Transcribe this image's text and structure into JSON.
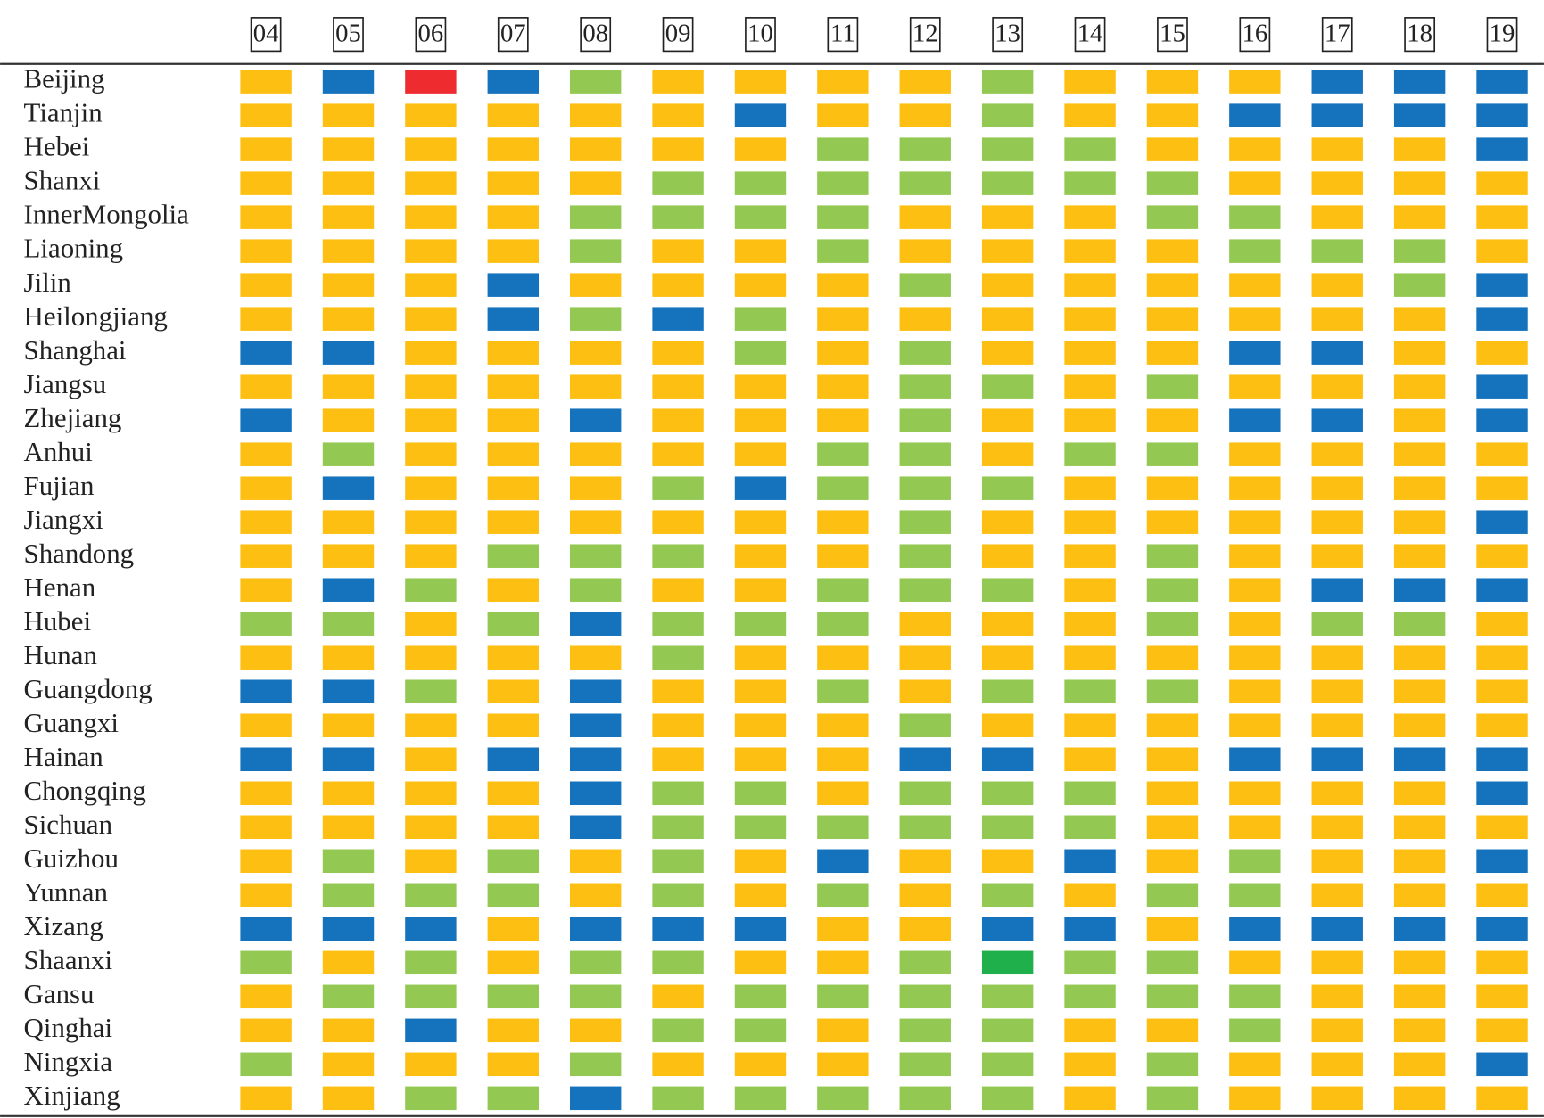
{
  "table": {
    "columns": [
      "04",
      "05",
      "06",
      "07",
      "08",
      "09",
      "10",
      "11",
      "12",
      "13",
      "14",
      "15",
      "16",
      "17",
      "18",
      "19"
    ],
    "rows": [
      {
        "label": "Beijing",
        "cells": [
          "#fcbf12",
          "#1572bd",
          "#ee2b2e",
          "#1572bd",
          "#93c852",
          "#fcbf12",
          "#fcbf12",
          "#fcbf12",
          "#fcbf12",
          "#93c852",
          "#fcbf12",
          "#fcbf12",
          "#fcbf12",
          "#1572bd",
          "#1572bd",
          "#1572bd"
        ]
      },
      {
        "label": "Tianjin",
        "cells": [
          "#fcbf12",
          "#fcbf12",
          "#fcbf12",
          "#fcbf12",
          "#fcbf12",
          "#fcbf12",
          "#1572bd",
          "#fcbf12",
          "#fcbf12",
          "#93c852",
          "#fcbf12",
          "#fcbf12",
          "#1572bd",
          "#1572bd",
          "#1572bd",
          "#1572bd"
        ]
      },
      {
        "label": "Hebei",
        "cells": [
          "#fcbf12",
          "#fcbf12",
          "#fcbf12",
          "#fcbf12",
          "#fcbf12",
          "#fcbf12",
          "#fcbf12",
          "#93c852",
          "#93c852",
          "#93c852",
          "#93c852",
          "#fcbf12",
          "#fcbf12",
          "#fcbf12",
          "#fcbf12",
          "#1572bd"
        ]
      },
      {
        "label": "Shanxi",
        "cells": [
          "#fcbf12",
          "#fcbf12",
          "#fcbf12",
          "#fcbf12",
          "#fcbf12",
          "#93c852",
          "#93c852",
          "#93c852",
          "#93c852",
          "#93c852",
          "#93c852",
          "#93c852",
          "#fcbf12",
          "#fcbf12",
          "#fcbf12",
          "#fcbf12"
        ]
      },
      {
        "label": "InnerMongolia",
        "cells": [
          "#fcbf12",
          "#fcbf12",
          "#fcbf12",
          "#fcbf12",
          "#93c852",
          "#93c852",
          "#93c852",
          "#93c852",
          "#fcbf12",
          "#fcbf12",
          "#fcbf12",
          "#93c852",
          "#93c852",
          "#fcbf12",
          "#fcbf12",
          "#fcbf12"
        ]
      },
      {
        "label": "Liaoning",
        "cells": [
          "#fcbf12",
          "#fcbf12",
          "#fcbf12",
          "#fcbf12",
          "#93c852",
          "#fcbf12",
          "#fcbf12",
          "#93c852",
          "#fcbf12",
          "#fcbf12",
          "#fcbf12",
          "#fcbf12",
          "#93c852",
          "#93c852",
          "#93c852",
          "#fcbf12"
        ]
      },
      {
        "label": "Jilin",
        "cells": [
          "#fcbf12",
          "#fcbf12",
          "#fcbf12",
          "#1572bd",
          "#fcbf12",
          "#fcbf12",
          "#fcbf12",
          "#fcbf12",
          "#93c852",
          "#fcbf12",
          "#fcbf12",
          "#fcbf12",
          "#fcbf12",
          "#fcbf12",
          "#93c852",
          "#1572bd"
        ]
      },
      {
        "label": "Heilongjiang",
        "cells": [
          "#fcbf12",
          "#fcbf12",
          "#fcbf12",
          "#1572bd",
          "#93c852",
          "#1572bd",
          "#93c852",
          "#fcbf12",
          "#fcbf12",
          "#fcbf12",
          "#fcbf12",
          "#fcbf12",
          "#fcbf12",
          "#fcbf12",
          "#fcbf12",
          "#1572bd"
        ]
      },
      {
        "label": "Shanghai",
        "cells": [
          "#1572bd",
          "#1572bd",
          "#fcbf12",
          "#fcbf12",
          "#fcbf12",
          "#fcbf12",
          "#93c852",
          "#fcbf12",
          "#93c852",
          "#fcbf12",
          "#fcbf12",
          "#fcbf12",
          "#1572bd",
          "#1572bd",
          "#fcbf12",
          "#fcbf12"
        ]
      },
      {
        "label": "Jiangsu",
        "cells": [
          "#fcbf12",
          "#fcbf12",
          "#fcbf12",
          "#fcbf12",
          "#fcbf12",
          "#fcbf12",
          "#fcbf12",
          "#fcbf12",
          "#93c852",
          "#93c852",
          "#fcbf12",
          "#93c852",
          "#fcbf12",
          "#fcbf12",
          "#fcbf12",
          "#1572bd"
        ]
      },
      {
        "label": "Zhejiang",
        "cells": [
          "#1572bd",
          "#fcbf12",
          "#fcbf12",
          "#fcbf12",
          "#1572bd",
          "#fcbf12",
          "#fcbf12",
          "#fcbf12",
          "#93c852",
          "#fcbf12",
          "#fcbf12",
          "#fcbf12",
          "#1572bd",
          "#1572bd",
          "#fcbf12",
          "#1572bd"
        ]
      },
      {
        "label": "Anhui",
        "cells": [
          "#fcbf12",
          "#93c852",
          "#fcbf12",
          "#fcbf12",
          "#fcbf12",
          "#fcbf12",
          "#fcbf12",
          "#93c852",
          "#93c852",
          "#fcbf12",
          "#93c852",
          "#93c852",
          "#fcbf12",
          "#fcbf12",
          "#fcbf12",
          "#fcbf12"
        ]
      },
      {
        "label": "Fujian",
        "cells": [
          "#fcbf12",
          "#1572bd",
          "#fcbf12",
          "#fcbf12",
          "#fcbf12",
          "#93c852",
          "#1572bd",
          "#93c852",
          "#93c852",
          "#93c852",
          "#fcbf12",
          "#fcbf12",
          "#fcbf12",
          "#fcbf12",
          "#fcbf12",
          "#fcbf12"
        ]
      },
      {
        "label": "Jiangxi",
        "cells": [
          "#fcbf12",
          "#fcbf12",
          "#fcbf12",
          "#fcbf12",
          "#fcbf12",
          "#fcbf12",
          "#fcbf12",
          "#fcbf12",
          "#93c852",
          "#fcbf12",
          "#fcbf12",
          "#fcbf12",
          "#fcbf12",
          "#fcbf12",
          "#fcbf12",
          "#1572bd"
        ]
      },
      {
        "label": "Shandong",
        "cells": [
          "#fcbf12",
          "#fcbf12",
          "#fcbf12",
          "#93c852",
          "#93c852",
          "#93c852",
          "#fcbf12",
          "#fcbf12",
          "#93c852",
          "#fcbf12",
          "#fcbf12",
          "#93c852",
          "#fcbf12",
          "#fcbf12",
          "#fcbf12",
          "#fcbf12"
        ]
      },
      {
        "label": "Henan",
        "cells": [
          "#fcbf12",
          "#1572bd",
          "#93c852",
          "#fcbf12",
          "#93c852",
          "#fcbf12",
          "#fcbf12",
          "#93c852",
          "#93c852",
          "#93c852",
          "#fcbf12",
          "#93c852",
          "#fcbf12",
          "#1572bd",
          "#1572bd",
          "#1572bd"
        ]
      },
      {
        "label": "Hubei",
        "cells": [
          "#93c852",
          "#93c852",
          "#fcbf12",
          "#93c852",
          "#1572bd",
          "#93c852",
          "#93c852",
          "#93c852",
          "#fcbf12",
          "#fcbf12",
          "#fcbf12",
          "#93c852",
          "#fcbf12",
          "#93c852",
          "#93c852",
          "#fcbf12"
        ]
      },
      {
        "label": "Hunan",
        "cells": [
          "#fcbf12",
          "#fcbf12",
          "#fcbf12",
          "#fcbf12",
          "#fcbf12",
          "#93c852",
          "#fcbf12",
          "#fcbf12",
          "#fcbf12",
          "#fcbf12",
          "#fcbf12",
          "#fcbf12",
          "#fcbf12",
          "#fcbf12",
          "#fcbf12",
          "#fcbf12"
        ]
      },
      {
        "label": "Guangdong",
        "cells": [
          "#1572bd",
          "#1572bd",
          "#93c852",
          "#fcbf12",
          "#1572bd",
          "#fcbf12",
          "#fcbf12",
          "#93c852",
          "#fcbf12",
          "#93c852",
          "#93c852",
          "#93c852",
          "#fcbf12",
          "#fcbf12",
          "#fcbf12",
          "#fcbf12"
        ]
      },
      {
        "label": "Guangxi",
        "cells": [
          "#fcbf12",
          "#fcbf12",
          "#fcbf12",
          "#fcbf12",
          "#1572bd",
          "#fcbf12",
          "#fcbf12",
          "#fcbf12",
          "#93c852",
          "#fcbf12",
          "#fcbf12",
          "#fcbf12",
          "#fcbf12",
          "#fcbf12",
          "#fcbf12",
          "#fcbf12"
        ]
      },
      {
        "label": "Hainan",
        "cells": [
          "#1572bd",
          "#1572bd",
          "#fcbf12",
          "#1572bd",
          "#1572bd",
          "#fcbf12",
          "#fcbf12",
          "#fcbf12",
          "#1572bd",
          "#1572bd",
          "#fcbf12",
          "#fcbf12",
          "#1572bd",
          "#1572bd",
          "#1572bd",
          "#1572bd"
        ]
      },
      {
        "label": "Chongqing",
        "cells": [
          "#fcbf12",
          "#fcbf12",
          "#fcbf12",
          "#fcbf12",
          "#1572bd",
          "#93c852",
          "#93c852",
          "#fcbf12",
          "#93c852",
          "#93c852",
          "#93c852",
          "#fcbf12",
          "#fcbf12",
          "#fcbf12",
          "#fcbf12",
          "#1572bd"
        ]
      },
      {
        "label": "Sichuan",
        "cells": [
          "#fcbf12",
          "#fcbf12",
          "#fcbf12",
          "#fcbf12",
          "#1572bd",
          "#93c852",
          "#93c852",
          "#93c852",
          "#93c852",
          "#93c852",
          "#93c852",
          "#fcbf12",
          "#fcbf12",
          "#fcbf12",
          "#fcbf12",
          "#fcbf12"
        ]
      },
      {
        "label": "Guizhou",
        "cells": [
          "#fcbf12",
          "#93c852",
          "#fcbf12",
          "#93c852",
          "#fcbf12",
          "#93c852",
          "#fcbf12",
          "#1572bd",
          "#fcbf12",
          "#fcbf12",
          "#1572bd",
          "#fcbf12",
          "#93c852",
          "#fcbf12",
          "#fcbf12",
          "#1572bd"
        ]
      },
      {
        "label": "Yunnan",
        "cells": [
          "#fcbf12",
          "#93c852",
          "#93c852",
          "#93c852",
          "#fcbf12",
          "#93c852",
          "#fcbf12",
          "#93c852",
          "#fcbf12",
          "#93c852",
          "#fcbf12",
          "#93c852",
          "#93c852",
          "#fcbf12",
          "#fcbf12",
          "#fcbf12"
        ]
      },
      {
        "label": "Xizang",
        "cells": [
          "#1572bd",
          "#1572bd",
          "#1572bd",
          "#fcbf12",
          "#1572bd",
          "#1572bd",
          "#1572bd",
          "#fcbf12",
          "#fcbf12",
          "#1572bd",
          "#1572bd",
          "#fcbf12",
          "#1572bd",
          "#1572bd",
          "#1572bd",
          "#1572bd"
        ]
      },
      {
        "label": "Shaanxi",
        "cells": [
          "#93c852",
          "#fcbf12",
          "#93c852",
          "#fcbf12",
          "#93c852",
          "#93c852",
          "#fcbf12",
          "#fcbf12",
          "#93c852",
          "#1fb04b",
          "#93c852",
          "#93c852",
          "#fcbf12",
          "#fcbf12",
          "#fcbf12",
          "#fcbf12"
        ]
      },
      {
        "label": "Gansu",
        "cells": [
          "#fcbf12",
          "#93c852",
          "#93c852",
          "#93c852",
          "#93c852",
          "#fcbf12",
          "#93c852",
          "#93c852",
          "#93c852",
          "#93c852",
          "#93c852",
          "#93c852",
          "#93c852",
          "#fcbf12",
          "#fcbf12",
          "#fcbf12"
        ]
      },
      {
        "label": "Qinghai",
        "cells": [
          "#fcbf12",
          "#fcbf12",
          "#1572bd",
          "#fcbf12",
          "#fcbf12",
          "#93c852",
          "#93c852",
          "#fcbf12",
          "#93c852",
          "#93c852",
          "#fcbf12",
          "#fcbf12",
          "#93c852",
          "#fcbf12",
          "#fcbf12",
          "#fcbf12"
        ]
      },
      {
        "label": "Ningxia",
        "cells": [
          "#93c852",
          "#fcbf12",
          "#fcbf12",
          "#fcbf12",
          "#93c852",
          "#fcbf12",
          "#fcbf12",
          "#fcbf12",
          "#93c852",
          "#93c852",
          "#fcbf12",
          "#93c852",
          "#fcbf12",
          "#fcbf12",
          "#fcbf12",
          "#1572bd"
        ]
      },
      {
        "label": "Xinjiang",
        "cells": [
          "#fcbf12",
          "#fcbf12",
          "#93c852",
          "#93c852",
          "#1572bd",
          "#93c852",
          "#93c852",
          "#93c852",
          "#93c852",
          "#93c852",
          "#fcbf12",
          "#93c852",
          "#fcbf12",
          "#fcbf12",
          "#fcbf12",
          "#fcbf12"
        ]
      }
    ]
  }
}
